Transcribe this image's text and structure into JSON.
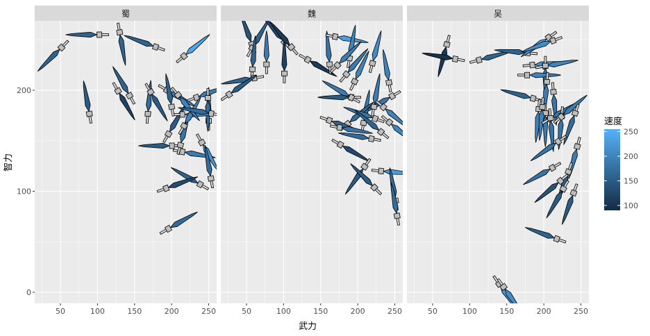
{
  "chart_data": {
    "type": "scatter",
    "glyph": "sword",
    "xlabel": "武力",
    "ylabel": "智力",
    "xlim": [
      25,
      262
    ],
    "ylim": [
      -8,
      270
    ],
    "x_ticks": [
      50,
      100,
      150,
      200,
      250
    ],
    "y_ticks": [
      0,
      100,
      200
    ],
    "grid": true,
    "legend": {
      "title": "速度",
      "position": "right",
      "ticks": [
        100,
        150,
        200,
        250
      ],
      "limits": [
        90,
        255
      ],
      "low_color": "#132B43",
      "high_color": "#56B1F7"
    },
    "point_fields": [
      "武力",
      "智力",
      "direction_deg",
      "速度"
    ],
    "facets": [
      {
        "label": "蜀",
        "points": [
          [
            51,
            242,
            225,
            160
          ],
          [
            102,
            255,
            180,
            160
          ],
          [
            130,
            257,
            280,
            160
          ],
          [
            178,
            243,
            160,
            160
          ],
          [
            217,
            234,
            40,
            240
          ],
          [
            89,
            177,
            100,
            150
          ],
          [
            143,
            195,
            120,
            160
          ],
          [
            128,
            199,
            300,
            120
          ],
          [
            168,
            177,
            85,
            170
          ],
          [
            172,
            198,
            300,
            150
          ],
          [
            194,
            200,
            330,
            190
          ],
          [
            200,
            145,
            180,
            150
          ],
          [
            215,
            139,
            350,
            190
          ],
          [
            241,
            148,
            300,
            220
          ],
          [
            253,
            113,
            100,
            170
          ],
          [
            238,
            107,
            150,
            160
          ],
          [
            193,
            103,
            20,
            130
          ],
          [
            196,
            63,
            30,
            170
          ],
          [
            196,
            157,
            60,
            150
          ],
          [
            212,
            146,
            75,
            180
          ],
          [
            250,
            170,
            90,
            160
          ],
          [
            234,
            193,
            20,
            190
          ],
          [
            249,
            192,
            270,
            170
          ],
          [
            215,
            176,
            0,
            200
          ],
          [
            200,
            184,
            100,
            160
          ],
          [
            217,
            165,
            60,
            200
          ],
          [
            209,
            195,
            310,
            200
          ],
          [
            253,
            177,
            170,
            170
          ]
        ]
      },
      {
        "label": "魏",
        "points": [
          [
            57,
            246,
            110,
            140
          ],
          [
            58,
            242,
            60,
            160
          ],
          [
            58,
            221,
            85,
            160
          ],
          [
            60,
            212,
            190,
            160
          ],
          [
            27,
            196,
            35,
            150
          ],
          [
            77,
            226,
            90,
            190
          ],
          [
            101,
            248,
            130,
            130
          ],
          [
            101,
            217,
            90,
            120
          ],
          [
            110,
            243,
            130,
            110
          ],
          [
            133,
            230,
            330,
            110
          ],
          [
            162,
            226,
            95,
            180
          ],
          [
            170,
            253,
            350,
            230
          ],
          [
            189,
            232,
            80,
            200
          ],
          [
            173,
            225,
            45,
            190
          ],
          [
            185,
            216,
            50,
            190
          ],
          [
            196,
            209,
            65,
            200
          ],
          [
            220,
            227,
            75,
            210
          ],
          [
            242,
            208,
            100,
            200
          ],
          [
            191,
            193,
            180,
            150
          ],
          [
            191,
            193,
            150,
            190
          ],
          [
            246,
            194,
            210,
            180
          ],
          [
            222,
            184,
            80,
            190
          ],
          [
            235,
            183,
            320,
            200
          ],
          [
            243,
            168,
            320,
            200
          ],
          [
            208,
            168,
            80,
            190
          ],
          [
            187,
            167,
            40,
            170
          ],
          [
            162,
            170,
            340,
            160
          ],
          [
            176,
            163,
            350,
            180
          ],
          [
            223,
            172,
            160,
            180
          ],
          [
            218,
            152,
            170,
            170
          ],
          [
            231,
            159,
            140,
            160
          ],
          [
            177,
            146,
            330,
            130
          ],
          [
            209,
            124,
            235,
            150
          ],
          [
            222,
            104,
            135,
            150
          ],
          [
            232,
            120,
            355,
            230
          ],
          [
            251,
            91,
            100,
            170
          ],
          [
            253,
            76,
            100,
            170
          ]
        ]
      },
      {
        "label": "吴",
        "points": [
          [
            69,
            245,
            255,
            110
          ],
          [
            80,
            231,
            170,
            100
          ],
          [
            113,
            230,
            15,
            160
          ],
          [
            178,
            237,
            175,
            160
          ],
          [
            206,
            252,
            215,
            230
          ],
          [
            212,
            249,
            200,
            210
          ],
          [
            185,
            225,
            5,
            220
          ],
          [
            202,
            224,
            10,
            200
          ],
          [
            202,
            224,
            270,
            190
          ],
          [
            178,
            215,
            0,
            200
          ],
          [
            204,
            208,
            265,
            190
          ],
          [
            213,
            198,
            275,
            180
          ],
          [
            185,
            192,
            165,
            160
          ],
          [
            193,
            181,
            265,
            200
          ],
          [
            202,
            177,
            270,
            190
          ],
          [
            198,
            183,
            265,
            200
          ],
          [
            209,
            172,
            30,
            190
          ],
          [
            209,
            172,
            275,
            180
          ],
          [
            224,
            174,
            265,
            180
          ],
          [
            224,
            174,
            40,
            190
          ],
          [
            242,
            177,
            250,
            170
          ],
          [
            219,
            149,
            215,
            180
          ],
          [
            245,
            144,
            255,
            190
          ],
          [
            211,
            123,
            210,
            180
          ],
          [
            233,
            119,
            250,
            160
          ],
          [
            222,
            110,
            220,
            140
          ],
          [
            226,
            102,
            240,
            150
          ],
          [
            240,
            98,
            250,
            150
          ],
          [
            217,
            53,
            160,
            160
          ],
          [
            140,
            8,
            305,
            220
          ],
          [
            146,
            5,
            305,
            210
          ]
        ]
      }
    ]
  }
}
